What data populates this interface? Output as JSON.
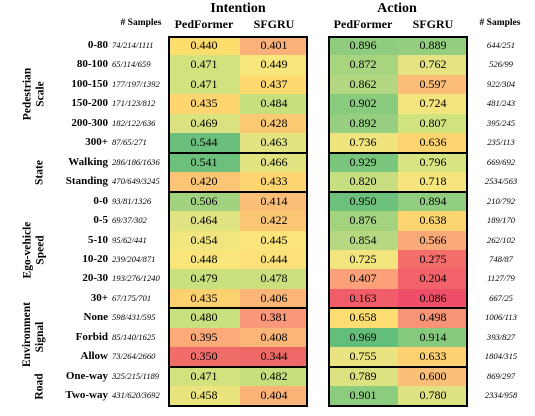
{
  "headers": {
    "intention": "Intention",
    "action": "Action",
    "samples": "# Samples",
    "pedformer": "PedFormer",
    "sfgru": "SFGRU"
  },
  "groups": [
    {
      "lines": [
        "Pedestrian",
        "Scale"
      ],
      "rows": [
        0,
        5
      ]
    },
    {
      "lines": [
        "State"
      ],
      "rows": [
        6,
        7
      ]
    },
    {
      "lines": [
        "Ego-vehicle",
        "Speed"
      ],
      "rows": [
        8,
        13
      ]
    },
    {
      "lines": [
        "Environment",
        "Signal"
      ],
      "rows": [
        14,
        16
      ]
    },
    {
      "lines": [
        "Road"
      ],
      "rows": [
        17,
        18
      ]
    }
  ],
  "rows": [
    {
      "label": "0-80",
      "samples_left": "74/214/1111",
      "int_ped": "0.440",
      "int_sf": "0.401",
      "act_ped": "0.896",
      "act_sf": "0.889",
      "samples_right": "644/251",
      "colors": [
        "#fddd6b",
        "#fbb27a",
        "#8fcc7e",
        "#94ce7f"
      ]
    },
    {
      "label": "80-100",
      "samples_left": "65/114/659",
      "int_ped": "0.471",
      "int_sf": "0.449",
      "act_ped": "0.872",
      "act_sf": "0.762",
      "samples_right": "526/99",
      "colors": [
        "#d2e27e",
        "#f6e67c",
        "#a9d47f",
        "#e6e382"
      ]
    },
    {
      "label": "100-150",
      "samples_left": "177/197/1392",
      "int_ped": "0.471",
      "int_sf": "0.437",
      "act_ped": "0.862",
      "act_sf": "0.597",
      "samples_right": "922/304",
      "colors": [
        "#d2e27e",
        "#fed96f",
        "#b2d780",
        "#fbbd78"
      ]
    },
    {
      "label": "150-200",
      "samples_left": "171/123/812",
      "int_ped": "0.435",
      "int_sf": "0.484",
      "act_ped": "0.902",
      "act_sf": "0.724",
      "samples_right": "481/243",
      "colors": [
        "#fed56f",
        "#c7e07e",
        "#89cb7d",
        "#f3e57d"
      ]
    },
    {
      "label": "200-300",
      "samples_left": "182/122/636",
      "int_ped": "0.469",
      "int_sf": "0.428",
      "act_ped": "0.892",
      "act_sf": "0.807",
      "samples_right": "395/245",
      "colors": [
        "#d9e27f",
        "#fcca73",
        "#95cf7f",
        "#d0e37f"
      ]
    },
    {
      "label": "300+",
      "samples_left": "87/65/271",
      "int_ped": "0.544",
      "int_sf": "0.463",
      "act_ped": "0.736",
      "act_sf": "0.636",
      "samples_right": "235/113",
      "colors": [
        "#69bf7b",
        "#e2e381",
        "#f0e47f",
        "#fdd470"
      ]
    },
    {
      "label": "Walking",
      "samples_left": "286/186/1636",
      "int_ped": "0.541",
      "int_sf": "0.466",
      "act_ped": "0.929",
      "act_sf": "0.796",
      "samples_right": "669/692",
      "colors": [
        "#6cc07c",
        "#dfe380",
        "#7ac67d",
        "#d8e481"
      ]
    },
    {
      "label": "Standing",
      "samples_left": "470/649/3245",
      "int_ped": "0.420",
      "int_sf": "0.433",
      "act_ped": "0.820",
      "act_sf": "0.718",
      "samples_right": "2534/563",
      "colors": [
        "#fcc575",
        "#fed570",
        "#c7df81",
        "#f6e57d"
      ]
    },
    {
      "label": "0-0",
      "samples_left": "93/81/1326",
      "int_ped": "0.506",
      "int_sf": "0.414",
      "act_ped": "0.950",
      "act_sf": "0.894",
      "samples_right": "210/792",
      "colors": [
        "#a2d280",
        "#fcbf77",
        "#6dc17c",
        "#91ce7f"
      ]
    },
    {
      "label": "0-5",
      "samples_left": "69/37/302",
      "int_ped": "0.464",
      "int_sf": "0.422",
      "act_ped": "0.876",
      "act_sf": "0.638",
      "samples_right": "189/170",
      "colors": [
        "#e0e381",
        "#fbc674",
        "#a4d37f",
        "#fdd570"
      ]
    },
    {
      "label": "5-10",
      "samples_left": "95/62/441",
      "int_ped": "0.454",
      "int_sf": "0.445",
      "act_ped": "0.854",
      "act_sf": "0.566",
      "samples_right": "262/102",
      "colors": [
        "#f0e57e",
        "#fbe479",
        "#b5d880",
        "#faa978"
      ]
    },
    {
      "label": "10-20",
      "samples_left": "239/204/871",
      "int_ped": "0.448",
      "int_sf": "0.444",
      "act_ped": "0.725",
      "act_sf": "0.275",
      "samples_right": "748/87",
      "colors": [
        "#f8e67b",
        "#fce178",
        "#f3e57d",
        "#f36e6a"
      ]
    },
    {
      "label": "20-30",
      "samples_left": "193/276/1240",
      "int_ped": "0.479",
      "int_sf": "0.478",
      "act_ped": "0.407",
      "act_sf": "0.204",
      "samples_right": "1127/79",
      "colors": [
        "#c8e07e",
        "#cae07f",
        "#fba078",
        "#f26268"
      ]
    },
    {
      "label": "30+",
      "samples_left": "67/175/701",
      "int_ped": "0.435",
      "int_sf": "0.406",
      "act_ped": "0.163",
      "act_sf": "0.086",
      "samples_right": "667/25",
      "colors": [
        "#fed170",
        "#fbb677",
        "#f15c69",
        "#ee4e67"
      ]
    },
    {
      "label": "None",
      "samples_left": "598/431/595",
      "int_ped": "0.480",
      "int_sf": "0.381",
      "act_ped": "0.658",
      "act_sf": "0.498",
      "samples_right": "1006/113",
      "colors": [
        "#c9e07e",
        "#f99879",
        "#fedd72",
        "#f89476"
      ]
    },
    {
      "label": "Forbid",
      "samples_left": "85/140/1625",
      "int_ped": "0.395",
      "int_sf": "0.408",
      "act_ped": "0.969",
      "act_sf": "0.914",
      "samples_right": "393/827",
      "colors": [
        "#fbaa78",
        "#fbb677",
        "#63bd7b",
        "#86ca7e"
      ]
    },
    {
      "label": "Allow",
      "samples_left": "73/264/2660",
      "int_ped": "0.350",
      "int_sf": "0.344",
      "act_ped": "0.755",
      "act_sf": "0.633",
      "samples_right": "1804/315",
      "colors": [
        "#f06d69",
        "#ef6868",
        "#ebe381",
        "#fdd171"
      ]
    },
    {
      "label": "One-way",
      "samples_left": "325/215/1189",
      "int_ped": "0.471",
      "int_sf": "0.482",
      "act_ped": "0.789",
      "act_sf": "0.600",
      "samples_right": "869/297",
      "colors": [
        "#d2e27e",
        "#c6e07e",
        "#dbe381",
        "#fcbf77"
      ]
    },
    {
      "label": "Two-way",
      "samples_left": "431/620/3692",
      "int_ped": "0.458",
      "int_sf": "0.404",
      "act_ped": "0.901",
      "act_sf": "0.780",
      "samples_right": "2334/958",
      "colors": [
        "#eae47f",
        "#fbb377",
        "#8ccc7e",
        "#dde381"
      ]
    }
  ]
}
